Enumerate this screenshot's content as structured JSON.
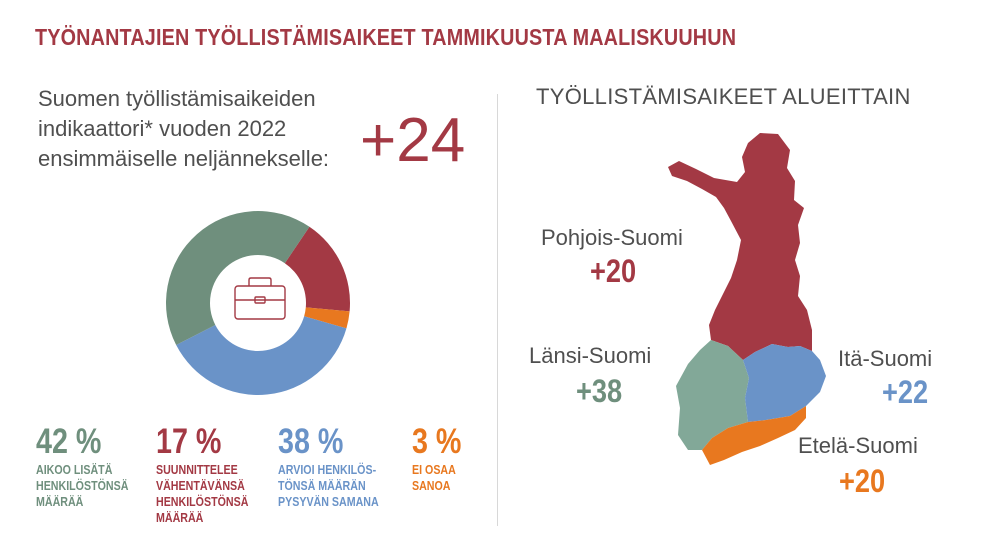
{
  "title": "TYÖNANTAJIEN TYÖLLISTÄMISAIKEET TAMMIKUUSTA MAALISKUUHUN",
  "intro": {
    "line1": "Suomen työllistämisaikeiden",
    "line2": "indikaattori* vuoden 2022",
    "line3": "ensimmäiselle neljännekselle:",
    "value": "+24"
  },
  "colors": {
    "green": "#6f8f7d",
    "red": "#a33944",
    "blue": "#6a93c8",
    "orange": "#e8781f",
    "text": "#4f4f4f"
  },
  "center_icon": "briefcase-icon",
  "chart_data": {
    "type": "pie",
    "variant": "donut",
    "slices": [
      {
        "label": "AIKOO LISÄTÄ HENKILÖSTÖNSÄ MÄÄRÄÄ",
        "value": 42,
        "color": "#6f8f7d"
      },
      {
        "label": "SUUNNITTELEE VÄHENTÄVÄNSÄ HENKILÖSTÖNSÄ MÄÄRÄÄ",
        "value": 17,
        "color": "#a33944"
      },
      {
        "label": "EI OSAA SANOA",
        "value": 3,
        "color": "#e8781f"
      },
      {
        "label": "ARVIOI HENKILÖSTÖNSÄ MÄÄRÄN PYSYVÄN SAMANA",
        "value": 38,
        "color": "#6a93c8"
      }
    ]
  },
  "stats": [
    {
      "pct": "42 %",
      "lines": [
        "AIKOO LISÄTÄ",
        "HENKILÖSTÖNSÄ",
        "MÄÄRÄÄ"
      ]
    },
    {
      "pct": "17 %",
      "lines": [
        "SUUNNITTELEE",
        "VÄHENTÄVÄNSÄ",
        "HENKILÖSTÖNSÄ",
        "MÄÄRÄÄ"
      ]
    },
    {
      "pct": "38 %",
      "lines": [
        "ARVIOI HENKILÖS-",
        "TÖNSÄ MÄÄRÄN",
        "PYSYVÄN SAMANA"
      ]
    },
    {
      "pct": "3 %",
      "lines": [
        "EI OSAA",
        "SANOA"
      ]
    }
  ],
  "map": {
    "title": "TYÖLLISTÄMISAIKEET ALUEITTAIN",
    "regions": [
      {
        "name": "Pohjois-Suomi",
        "value": "+20",
        "color": "#a33944"
      },
      {
        "name": "Länsi-Suomi",
        "value": "+38",
        "color": "#6f8f7d"
      },
      {
        "name": "Itä-Suomi",
        "value": "+22",
        "color": "#6a93c8"
      },
      {
        "name": "Etelä-Suomi",
        "value": "+20",
        "color": "#e8781f"
      }
    ]
  }
}
